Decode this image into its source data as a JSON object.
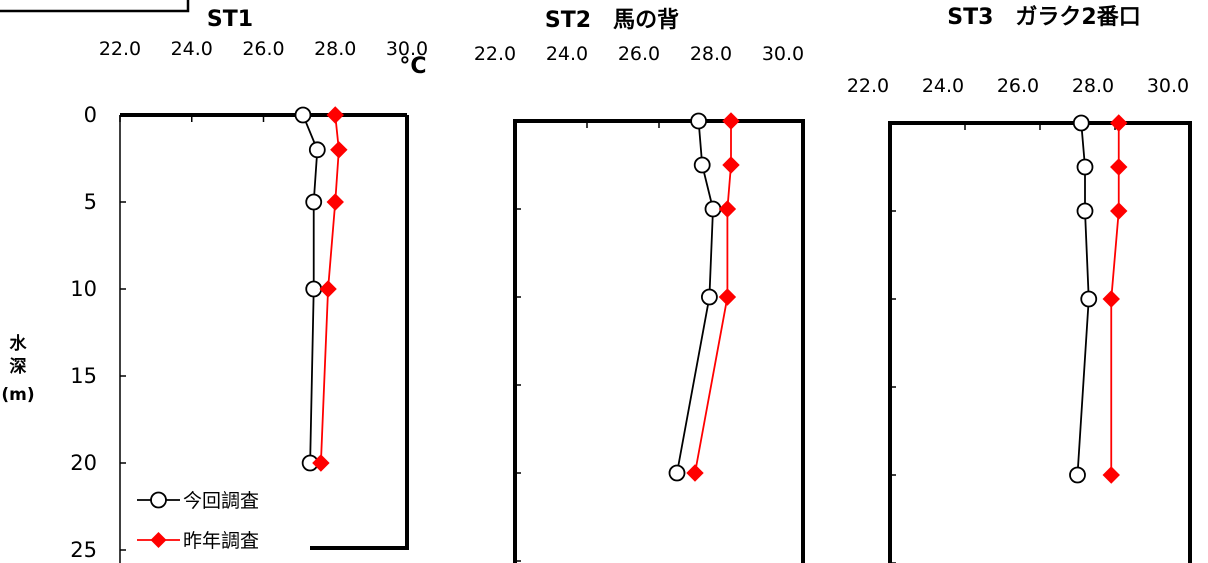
{
  "chart_data": [
    {
      "type": "line",
      "title": "ST1",
      "x_unit": "°C",
      "y_axis_label": [
        "水",
        "深",
        "(m)"
      ],
      "x_ticks": [
        "22.0",
        "24.0",
        "26.0",
        "28.0",
        "30.0"
      ],
      "y_ticks": [
        "0",
        "5",
        "10",
        "15",
        "20",
        "25"
      ],
      "xlim": [
        22,
        30
      ],
      "ylim": [
        0,
        25
      ],
      "series": [
        {
          "name": "今回調査",
          "color": "#000000",
          "marker": "open-circle",
          "x": [
            27.1,
            27.5,
            27.4,
            27.4,
            27.3
          ],
          "y": [
            0,
            2,
            5,
            10,
            20
          ]
        },
        {
          "name": "昨年調査",
          "color": "#ff0000",
          "marker": "diamond",
          "x": [
            28.0,
            28.1,
            28.0,
            27.8,
            27.6
          ],
          "y": [
            0,
            2,
            5,
            10,
            20
          ]
        }
      ],
      "legend": "bottom-left"
    },
    {
      "type": "line",
      "title": "ST2　馬の背",
      "x_ticks": [
        "22.0",
        "24.0",
        "26.0",
        "28.0",
        "30.0"
      ],
      "xlim": [
        22,
        30
      ],
      "ylim": [
        0,
        25
      ],
      "series": [
        {
          "name": "今回調査",
          "color": "#000000",
          "marker": "open-circle",
          "x": [
            27.1,
            27.2,
            27.5,
            27.4,
            26.5
          ],
          "y": [
            0,
            2.5,
            5,
            10,
            20
          ]
        },
        {
          "name": "昨年調査",
          "color": "#ff0000",
          "marker": "diamond",
          "x": [
            28.0,
            28.0,
            27.9,
            27.9,
            27.0
          ],
          "y": [
            0,
            2.5,
            5,
            10,
            20
          ]
        }
      ]
    },
    {
      "type": "line",
      "title": "ST3　ガラク2番口",
      "x_ticks": [
        "22.0",
        "24.0",
        "26.0",
        "28.0",
        "30.0"
      ],
      "xlim": [
        22,
        30
      ],
      "ylim": [
        0,
        25
      ],
      "series": [
        {
          "name": "今回調査",
          "color": "#000000",
          "marker": "open-circle",
          "x": [
            27.1,
            27.2,
            27.2,
            27.3,
            27.0
          ],
          "y": [
            0,
            2.5,
            5,
            10,
            20
          ]
        },
        {
          "name": "昨年調査",
          "color": "#ff0000",
          "marker": "diamond",
          "x": [
            28.1,
            28.1,
            28.1,
            27.9,
            27.9
          ],
          "y": [
            0,
            2.5,
            5,
            10,
            20
          ]
        }
      ]
    }
  ]
}
